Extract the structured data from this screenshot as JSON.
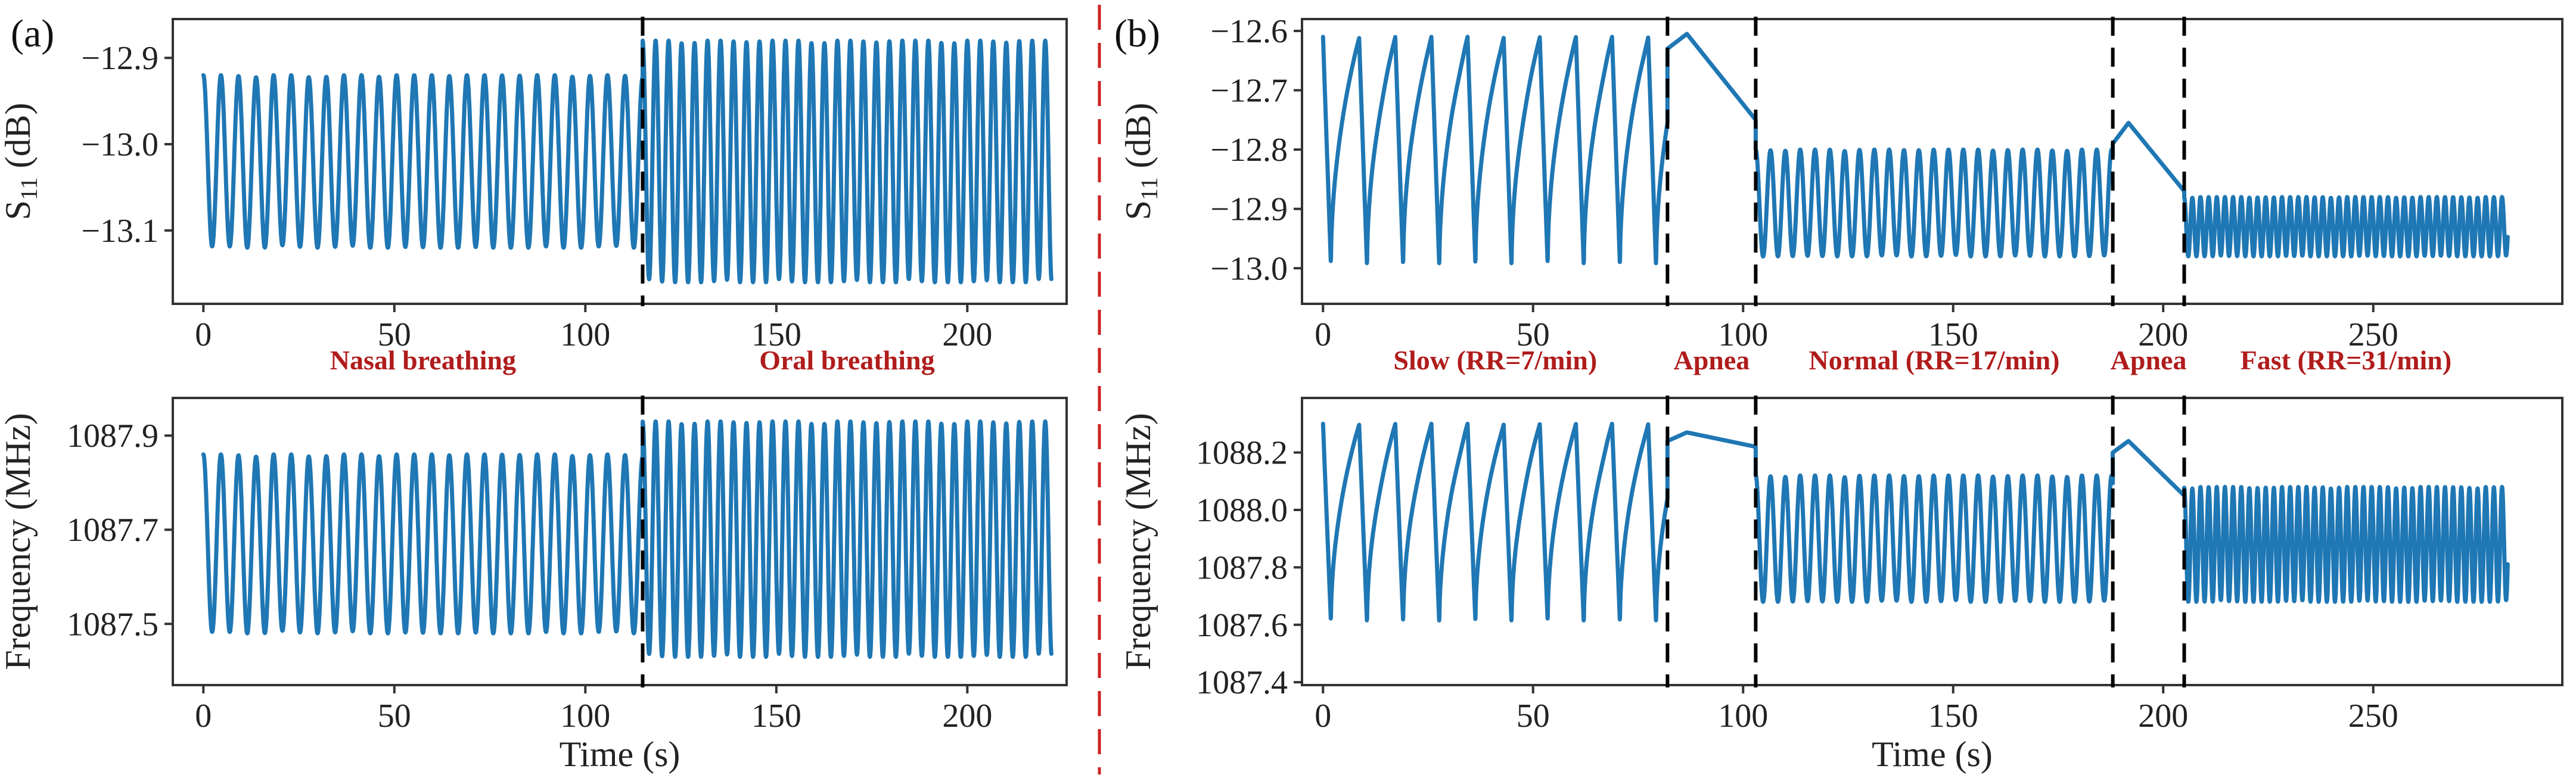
{
  "colors": {
    "series": "#1f77b4",
    "phase_text": "#b01c1c",
    "divider": "#cc2222"
  },
  "chart_data": [
    {
      "id": "a_s11",
      "panel": "a",
      "type": "line",
      "title": "",
      "xlabel": "",
      "ylabel_main": "S",
      "ylabel_sub": "11",
      "ylabel_unit": " (dB)",
      "xlim": [
        -8,
        226
      ],
      "ylim": [
        -13.185,
        -12.855
      ],
      "xticks": [
        0,
        50,
        100,
        150,
        200
      ],
      "xticklabels": [
        "0",
        "50",
        "100",
        "150",
        "200"
      ],
      "yticks": [
        -12.9,
        -13.0,
        -13.1
      ],
      "yticklabels": [
        "−12.9",
        "−13.0",
        "−13.1"
      ],
      "markers": [
        115
      ],
      "segments": [
        {
          "label": "Nasal breathing",
          "start": 0,
          "end": 115,
          "period": 4.6,
          "max": -12.92,
          "min": -13.12,
          "shape": "sin"
        },
        {
          "label": "Oral breathing",
          "start": 115,
          "end": 222,
          "period": 3.4,
          "max": -12.88,
          "min": -13.16,
          "shape": "sin"
        }
      ]
    },
    {
      "id": "a_freq",
      "panel": "a",
      "type": "line",
      "title": "",
      "xlabel": "Time (s)",
      "ylabel_main": "Frequency (MHz)",
      "ylabel_sub": "",
      "ylabel_unit": "",
      "xlim": [
        -8,
        226
      ],
      "ylim": [
        1087.37,
        1087.98
      ],
      "xticks": [
        0,
        50,
        100,
        150,
        200
      ],
      "xticklabels": [
        "0",
        "50",
        "100",
        "150",
        "200"
      ],
      "yticks": [
        1087.9,
        1087.7,
        1087.5
      ],
      "yticklabels": [
        "1087.9",
        "1087.7",
        "1087.5"
      ],
      "markers": [
        115
      ],
      "segments": [
        {
          "label": "Nasal breathing",
          "start": 0,
          "end": 115,
          "period": 4.6,
          "max": 1087.86,
          "min": 1087.48,
          "shape": "sin"
        },
        {
          "label": "Oral breathing",
          "start": 115,
          "end": 222,
          "period": 3.4,
          "max": 1087.93,
          "min": 1087.43,
          "shape": "sin"
        }
      ]
    },
    {
      "id": "b_s11",
      "panel": "b",
      "type": "line",
      "title": "",
      "xlabel": "",
      "ylabel_main": "S",
      "ylabel_sub": "11",
      "ylabel_unit": " (dB)",
      "xlim": [
        -5,
        295
      ],
      "ylim": [
        -13.06,
        -12.58
      ],
      "xticks": [
        0,
        50,
        100,
        150,
        200,
        250
      ],
      "xticklabels": [
        "0",
        "50",
        "100",
        "150",
        "200",
        "250"
      ],
      "yticks": [
        -12.6,
        -12.7,
        -12.8,
        -12.9,
        -13.0
      ],
      "yticklabels": [
        "−12.6",
        "−12.7",
        "−12.8",
        "−12.9",
        "−13.0"
      ],
      "markers": [
        82,
        103,
        188,
        205
      ],
      "segments": [
        {
          "label": "Slow (RR=7/min)",
          "start": 0,
          "end": 82,
          "period": 8.6,
          "max": -12.61,
          "min": -13.0,
          "shape": "saw"
        },
        {
          "label": "Apnea",
          "start": 82,
          "end": 103,
          "shape": "hold",
          "from": -12.63,
          "peak": -12.605,
          "to": -12.75
        },
        {
          "label": "Normal (RR=17/min)",
          "start": 103,
          "end": 188,
          "period": 3.53,
          "max": -12.8,
          "min": -12.98,
          "shape": "sin"
        },
        {
          "label": "Apnea",
          "start": 188,
          "end": 205,
          "shape": "hold",
          "from": -12.79,
          "peak": -12.755,
          "to": -12.87
        },
        {
          "label": "Fast (RR=31/min)",
          "start": 205,
          "end": 282,
          "period": 1.94,
          "max": -12.88,
          "min": -12.98,
          "shape": "sin"
        }
      ]
    },
    {
      "id": "b_freq",
      "panel": "b",
      "type": "line",
      "title": "",
      "xlabel": "Time (s)",
      "ylabel_main": "Frequency (MHz)",
      "ylabel_sub": "",
      "ylabel_unit": "",
      "xlim": [
        -5,
        295
      ],
      "ylim": [
        1087.39,
        1088.39
      ],
      "xticks": [
        0,
        50,
        100,
        150,
        200,
        250
      ],
      "xticklabels": [
        "0",
        "50",
        "100",
        "150",
        "200",
        "250"
      ],
      "yticks": [
        1088.2,
        1088.0,
        1087.8,
        1087.6,
        1087.4
      ],
      "yticklabels": [
        "1088.2",
        "1088.0",
        "1087.8",
        "1087.6",
        "1087.4"
      ],
      "markers": [
        82,
        103,
        188,
        205
      ],
      "segments": [
        {
          "label": "Slow (RR=7/min)",
          "start": 0,
          "end": 82,
          "period": 8.6,
          "max": 1088.3,
          "min": 1087.6,
          "shape": "saw"
        },
        {
          "label": "Apnea",
          "start": 82,
          "end": 103,
          "shape": "hold",
          "from": 1088.24,
          "peak": 1088.27,
          "to": 1088.22
        },
        {
          "label": "Normal (RR=17/min)",
          "start": 103,
          "end": 188,
          "period": 3.53,
          "max": 1088.12,
          "min": 1087.68,
          "shape": "sin"
        },
        {
          "label": "Apnea",
          "start": 188,
          "end": 205,
          "shape": "hold",
          "from": 1088.2,
          "peak": 1088.24,
          "to": 1088.05
        },
        {
          "label": "Fast (RR=31/min)",
          "start": 205,
          "end": 282,
          "period": 1.94,
          "max": 1088.08,
          "min": 1087.68,
          "shape": "sin"
        }
      ]
    }
  ],
  "panel_labels": {
    "a": "(a)",
    "b": "(b)"
  },
  "phase_labels": {
    "a": [
      "Nasal breathing",
      "Oral breathing"
    ],
    "b": [
      "Slow (RR=7/min)",
      "Apnea",
      "Normal (RR=17/min)",
      "Apnea",
      "Fast (RR=31/min)"
    ]
  }
}
